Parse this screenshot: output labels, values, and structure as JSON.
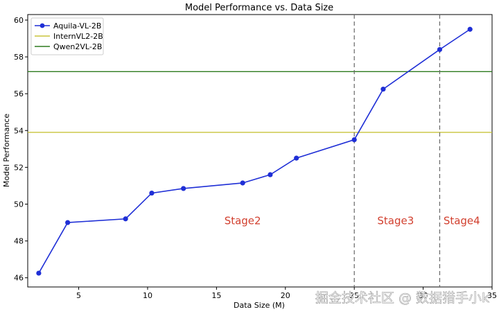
{
  "chart_data": {
    "type": "line",
    "title": "Model Performance vs. Data Size",
    "xlabel": "Data Size (M)",
    "ylabel": "Model Performance",
    "xlim": [
      1.3,
      35.0
    ],
    "ylim": [
      45.5,
      60.3
    ],
    "xticks": [
      5,
      10,
      15,
      20,
      25,
      30,
      35
    ],
    "yticks": [
      46,
      48,
      50,
      52,
      54,
      56,
      58,
      60
    ],
    "grid": false,
    "legend_position": "top-left",
    "series": [
      {
        "name": "Aquila-VL-2B",
        "color": "#1f2fd6",
        "marker": "circle",
        "x": [
          2.1,
          4.2,
          8.4,
          10.3,
          12.6,
          16.9,
          18.9,
          20.8,
          25.0,
          27.1,
          31.2,
          33.4
        ],
        "y": [
          46.25,
          49.0,
          49.2,
          50.6,
          50.85,
          51.15,
          51.6,
          52.5,
          53.5,
          56.25,
          58.4,
          59.5
        ]
      }
    ],
    "reference_lines": [
      {
        "name": "InternVL2-2B",
        "orientation": "horizontal",
        "value": 53.9,
        "color": "#c8c33a"
      },
      {
        "name": "Qwen2VL-2B",
        "orientation": "horizontal",
        "value": 57.2,
        "color": "#2d7a1e"
      }
    ],
    "stage_dividers": [
      25.0,
      31.2
    ],
    "annotations": [
      {
        "text": "Stage2",
        "x": 16.9,
        "y": 49.1,
        "color": "#d2402f"
      },
      {
        "text": "Stage3",
        "x": 28.0,
        "y": 49.1,
        "color": "#d2402f"
      },
      {
        "text": "Stage4",
        "x": 32.8,
        "y": 49.1,
        "color": "#d2402f"
      }
    ]
  },
  "watermark": "掘金技术社区 @ 数据猎手小k"
}
